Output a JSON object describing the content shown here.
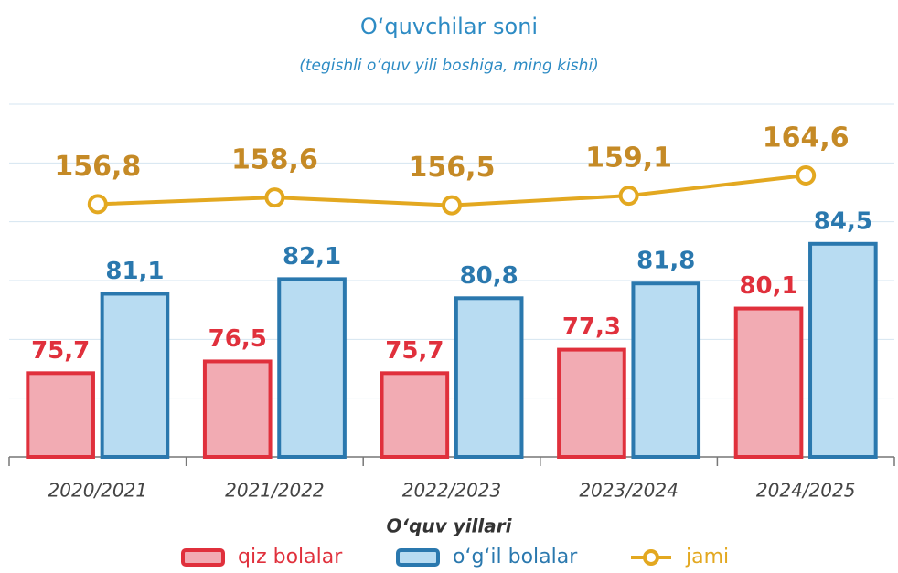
{
  "chart_data": {
    "type": "bar",
    "title": "O‘quvchilar soni",
    "subtitle": "(tegishli o‘quv yili boshiga, ming kishi)",
    "x_label": "O‘quv yillari",
    "categories": [
      "2020/2021",
      "2021/2022",
      "2022/2023",
      "2023/2024",
      "2024/2025"
    ],
    "series": [
      {
        "name": "qiz bolalar",
        "type": "bar",
        "color": "#e0303c",
        "fill": "#f2abb3",
        "values": [
          75.7,
          76.5,
          75.7,
          77.3,
          80.1
        ],
        "value_labels": [
          "75,7",
          "76,5",
          "75,7",
          "77,3",
          "80,1"
        ]
      },
      {
        "name": "o‘g‘il bolalar",
        "type": "bar",
        "color": "#2a78ae",
        "fill": "#b8dcf2",
        "values": [
          81.1,
          82.1,
          80.8,
          81.8,
          84.5
        ],
        "value_labels": [
          "81,1",
          "82,1",
          "80,8",
          "81,8",
          "84,5"
        ]
      },
      {
        "name": "jami",
        "type": "line",
        "axis": "y2",
        "color": "#e3a820",
        "values": [
          156.8,
          158.6,
          156.5,
          159.1,
          164.6
        ],
        "value_labels": [
          "156,8",
          "158,6",
          "156,5",
          "159,1",
          "164,6"
        ]
      }
    ],
    "ylim": [
      70,
      94
    ],
    "yticks": [
      70,
      74,
      78,
      82,
      86,
      90,
      94
    ],
    "y2lim": [
      88,
      184
    ],
    "grid": true,
    "legend": "bottom"
  }
}
